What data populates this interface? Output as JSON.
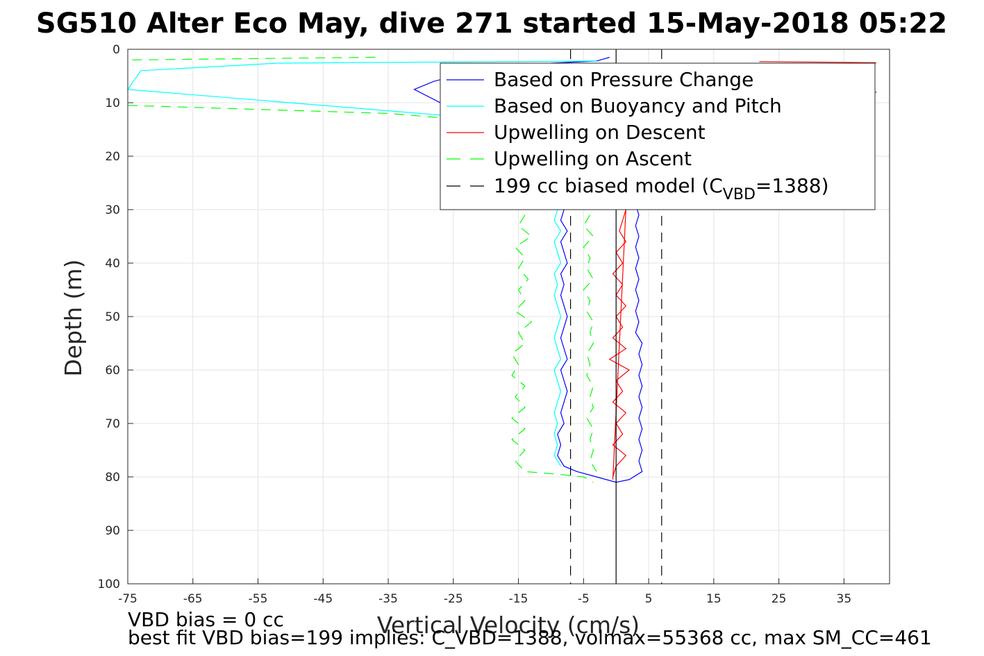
{
  "chart_data": {
    "type": "line",
    "title": "SG510 Alter Eco May, dive 271 started 15-May-2018 05:22",
    "xlabel": "Vertical Velocity (cm/s)",
    "ylabel": "Depth (m)",
    "xlim": [
      -75,
      42
    ],
    "ylim": [
      0,
      100
    ],
    "y_reversed": true,
    "grid": true,
    "legend_position": "top-right",
    "xticks": [
      "-75",
      "-65",
      "-55",
      "-45",
      "-35",
      "-25",
      "-15",
      "-5",
      "5",
      "15",
      "25",
      "35"
    ],
    "yticks": [
      "0",
      "10",
      "20",
      "30",
      "40",
      "50",
      "60",
      "70",
      "80",
      "90",
      "100"
    ],
    "series": [
      {
        "name": "Based on Pressure Change",
        "color": "#0000ff",
        "style": "solid",
        "points": [
          [
            -1,
            1.5
          ],
          [
            -3,
            2.2
          ],
          [
            -10,
            2.6
          ],
          [
            -20,
            3.5
          ],
          [
            -28,
            6
          ],
          [
            -31,
            7.5
          ],
          [
            -27,
            10
          ],
          [
            -20,
            12
          ],
          [
            -12,
            15
          ],
          [
            -8,
            20
          ],
          [
            -8,
            25
          ],
          [
            -8,
            30
          ],
          [
            -8.5,
            32
          ],
          [
            -7.5,
            34
          ],
          [
            -8.5,
            36
          ],
          [
            -8,
            38
          ],
          [
            -7.5,
            40
          ],
          [
            -8.5,
            42
          ],
          [
            -8,
            44
          ],
          [
            -8.5,
            46
          ],
          [
            -8,
            48
          ],
          [
            -7.5,
            50
          ],
          [
            -8,
            52
          ],
          [
            -8.5,
            54
          ],
          [
            -8,
            56
          ],
          [
            -7.5,
            58
          ],
          [
            -8.5,
            60
          ],
          [
            -8,
            62
          ],
          [
            -7.5,
            64
          ],
          [
            -8,
            66
          ],
          [
            -8.5,
            68
          ],
          [
            -8,
            70
          ],
          [
            -9,
            72
          ],
          [
            -8.5,
            74
          ],
          [
            -9,
            76
          ],
          [
            -8,
            78
          ],
          [
            -6,
            79
          ],
          [
            -3,
            80
          ],
          [
            0,
            81
          ],
          [
            2,
            80.5
          ],
          [
            4,
            79
          ],
          [
            3.5,
            77
          ],
          [
            4,
            75
          ],
          [
            3.5,
            73
          ],
          [
            4,
            71
          ],
          [
            3.5,
            69
          ],
          [
            4,
            67
          ],
          [
            3.5,
            65
          ],
          [
            4,
            63
          ],
          [
            3.5,
            61
          ],
          [
            4,
            59
          ],
          [
            3.5,
            57
          ],
          [
            4,
            55
          ],
          [
            3,
            53
          ],
          [
            3.5,
            51
          ],
          [
            3,
            49
          ],
          [
            3.5,
            47
          ],
          [
            3,
            45
          ],
          [
            3.5,
            43
          ],
          [
            3,
            41
          ],
          [
            3.5,
            39
          ],
          [
            3,
            37
          ],
          [
            3.5,
            35
          ],
          [
            3,
            33
          ],
          [
            3.5,
            31
          ],
          [
            3,
            29
          ]
        ]
      },
      {
        "name": "Based on Buoyancy and Pitch",
        "color": "#00ffff",
        "style": "solid",
        "points": [
          [
            -3,
            2.2
          ],
          [
            -52,
            2.6
          ],
          [
            -73,
            4
          ],
          [
            -75,
            7.5
          ],
          [
            -55,
            9.5
          ],
          [
            -35,
            11.5
          ],
          [
            -25,
            12.5
          ],
          [
            -15,
            14
          ],
          [
            -9,
            17
          ],
          [
            -9,
            22
          ],
          [
            -9,
            30
          ],
          [
            -9.5,
            32
          ],
          [
            -8.5,
            34
          ],
          [
            -9.5,
            36
          ],
          [
            -9,
            38
          ],
          [
            -8.5,
            40
          ],
          [
            -9.5,
            42
          ],
          [
            -9,
            44
          ],
          [
            -9.5,
            46
          ],
          [
            -9,
            48
          ],
          [
            -8.5,
            50
          ],
          [
            -9,
            52
          ],
          [
            -9.5,
            54
          ],
          [
            -9,
            56
          ],
          [
            -8.5,
            58
          ],
          [
            -9.5,
            60
          ],
          [
            -9,
            62
          ],
          [
            -8.5,
            64
          ],
          [
            -9,
            66
          ],
          [
            -9.5,
            68
          ],
          [
            -9,
            70
          ],
          [
            -9.5,
            72
          ],
          [
            -9,
            74
          ],
          [
            -9.5,
            76
          ],
          [
            -8.5,
            78
          ]
        ]
      },
      {
        "name": "Upwelling on Descent",
        "color": "#ff0000",
        "style": "solid",
        "points": [
          [
            22,
            2.3
          ],
          [
            40,
            2.5
          ]
        ]
      },
      {
        "name": "Upwelling on Descent (b)",
        "color": "#ff0000",
        "style": "solid",
        "points": [
          [
            40,
            8
          ],
          [
            37,
            8.5
          ]
        ]
      },
      {
        "name": "Upwelling on Descent (c)",
        "color": "#ff0000",
        "style": "solid",
        "points": [
          [
            1.5,
            30
          ],
          [
            0.5,
            34
          ],
          [
            1.5,
            36
          ],
          [
            0,
            38
          ],
          [
            1,
            40
          ],
          [
            -0.5,
            42
          ],
          [
            1,
            44
          ],
          [
            0,
            46
          ],
          [
            1.5,
            48
          ],
          [
            0,
            50
          ],
          [
            1,
            52
          ],
          [
            -0.5,
            54
          ],
          [
            1.5,
            56
          ],
          [
            -1,
            58
          ],
          [
            2,
            60
          ],
          [
            0,
            62
          ],
          [
            1,
            64
          ],
          [
            -0.5,
            66
          ],
          [
            1.5,
            68
          ],
          [
            0,
            70
          ],
          [
            1,
            72
          ],
          [
            -0.5,
            74
          ],
          [
            1.5,
            76
          ],
          [
            0,
            78
          ],
          [
            -0.5,
            80
          ]
        ]
      },
      {
        "name": "Upwelling on Descent (fit)",
        "color": "#ff0000",
        "style": "solid",
        "points": [
          [
            1.5,
            30
          ],
          [
            -0.5,
            80.5
          ]
        ]
      },
      {
        "name": "Upwelling on Ascent",
        "color": "#00ff00",
        "style": "dashed",
        "points": [
          [
            -37,
            1.5
          ],
          [
            -75,
            2
          ]
        ]
      },
      {
        "name": "Upwelling on Ascent (b)",
        "color": "#00ff00",
        "style": "dashed",
        "points": [
          [
            -75,
            10.5
          ],
          [
            -35,
            12
          ],
          [
            -20,
            13.5
          ]
        ]
      },
      {
        "name": "Upwelling on Ascent (c)",
        "color": "#00ff00",
        "style": "dashed",
        "points": [
          [
            -14,
            31
          ],
          [
            -15,
            33
          ],
          [
            -13,
            35
          ],
          [
            -15.5,
            37
          ],
          [
            -14,
            39
          ],
          [
            -15,
            41
          ],
          [
            -13.5,
            43
          ],
          [
            -15,
            45
          ],
          [
            -14,
            47
          ],
          [
            -15.5,
            49
          ],
          [
            -13,
            51
          ],
          [
            -15,
            53
          ],
          [
            -14,
            55
          ],
          [
            -16,
            57
          ],
          [
            -15,
            59
          ],
          [
            -16,
            61
          ],
          [
            -14,
            63
          ],
          [
            -15.5,
            65
          ],
          [
            -14,
            67
          ],
          [
            -16,
            69
          ],
          [
            -14,
            71
          ],
          [
            -16,
            73
          ],
          [
            -14,
            75
          ],
          [
            -15.5,
            77
          ],
          [
            -14,
            79
          ],
          [
            -9,
            79.5
          ],
          [
            -5,
            80
          ],
          [
            -3.5,
            81
          ]
        ]
      },
      {
        "name": "Upwelling on Ascent (d)",
        "color": "#00ff00",
        "style": "dashed",
        "points": [
          [
            -4,
            31
          ],
          [
            -5,
            33
          ],
          [
            -3.5,
            35
          ],
          [
            -5,
            37
          ],
          [
            -4,
            39
          ],
          [
            -4.5,
            41
          ],
          [
            -3.5,
            43
          ],
          [
            -5,
            45
          ],
          [
            -4,
            47
          ],
          [
            -4.5,
            49
          ],
          [
            -3.5,
            51
          ],
          [
            -4,
            53
          ],
          [
            -3.5,
            55
          ],
          [
            -4.5,
            57
          ],
          [
            -4,
            59
          ],
          [
            -4.5,
            61
          ],
          [
            -3.5,
            63
          ],
          [
            -4,
            65
          ],
          [
            -3.5,
            67
          ],
          [
            -4.5,
            69
          ],
          [
            -3.5,
            71
          ],
          [
            -4,
            73
          ],
          [
            -3.5,
            75
          ],
          [
            -4,
            77
          ],
          [
            -3,
            79
          ]
        ]
      },
      {
        "name": "199 cc biased model (C_VBD=1388)",
        "color": "#000000",
        "style": "dashed",
        "points": [
          [
            -7,
            0
          ],
          [
            -7,
            100
          ]
        ]
      },
      {
        "name": "199 cc biased model (b)",
        "color": "#000000",
        "style": "dashed",
        "points": [
          [
            7,
            0
          ],
          [
            7,
            100
          ]
        ]
      },
      {
        "name": "zero line",
        "color": "#000000",
        "style": "solid",
        "points": [
          [
            0,
            0
          ],
          [
            0,
            100
          ]
        ]
      }
    ],
    "legend": [
      {
        "label": "Based on Pressure Change",
        "color": "#0000ff",
        "style": "solid"
      },
      {
        "label": "Based on Buoyancy and Pitch",
        "color": "#00ffff",
        "style": "solid"
      },
      {
        "label": "Upwelling on Descent",
        "color": "#ff0000",
        "style": "solid"
      },
      {
        "label": "Upwelling on Ascent",
        "color": "#00ff00",
        "style": "dashed"
      },
      {
        "label_main": "199 cc biased model (C",
        "label_sub": "VBD",
        "label_end": "=1388)",
        "color": "#000000",
        "style": "dashed"
      }
    ],
    "annotations": [
      "VBD bias = 0 cc",
      "best fit VBD bias=199 implies: C_VBD=1388, volmax=55368 cc, max SM_CC=461"
    ]
  }
}
